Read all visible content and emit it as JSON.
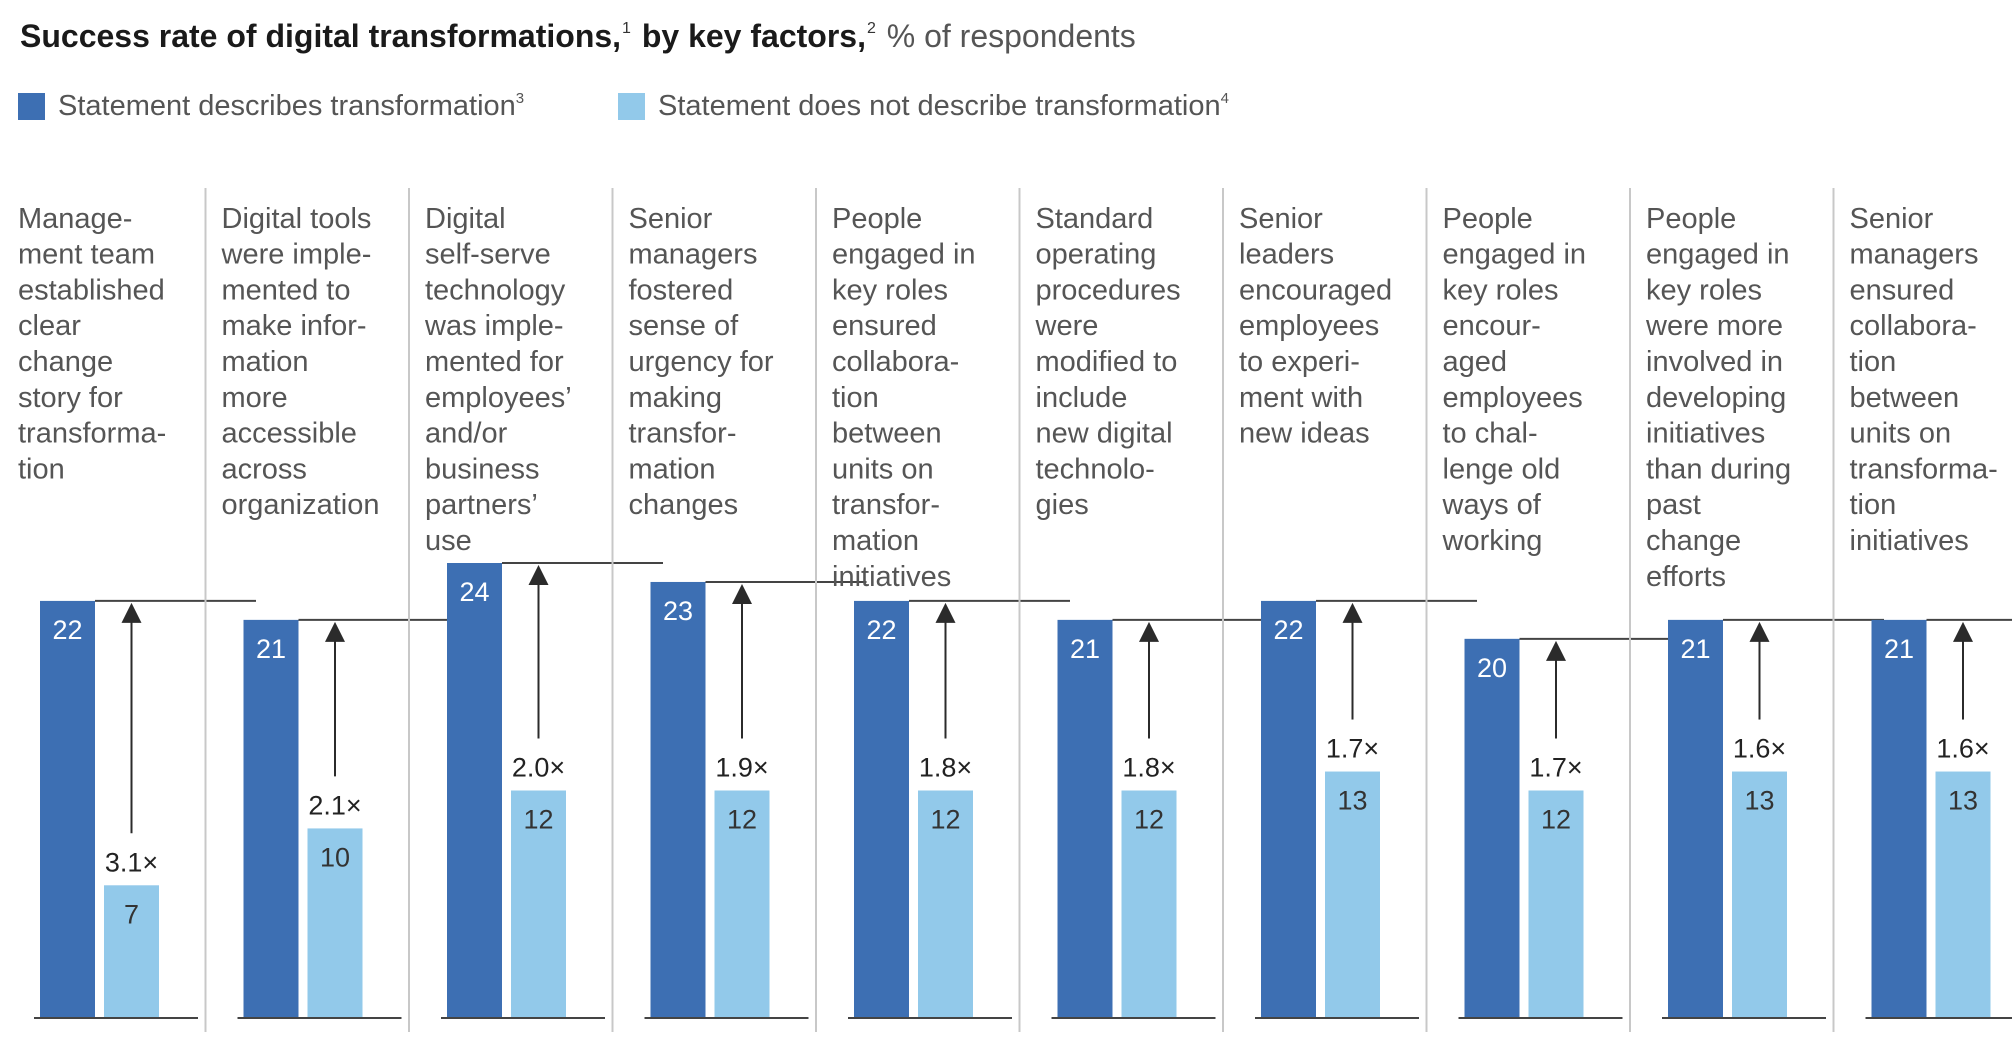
{
  "title": {
    "main_a": "Success rate of digital transformations,",
    "sup_a": "1",
    "main_b": " by key factors,",
    "sup_b": "2",
    "unit": "% of respondents"
  },
  "legend": [
    {
      "label": "Statement describes transformation",
      "sup": "3",
      "color": "#3d6fb3"
    },
    {
      "label": "Statement does not describe transformation",
      "sup": "4",
      "color": "#92c9ea"
    }
  ],
  "colors": {
    "describes": "#3d6fb3",
    "not_describes": "#92c9ea",
    "divider": "#c8c8c8",
    "axis": "#444444",
    "arrow": "#2b2b2b",
    "label_text": "#555555"
  },
  "chart_data": {
    "type": "bar",
    "categories": [
      [
        "Manage-",
        "ment team",
        "established",
        "clear",
        "change",
        "story for",
        "transforma-",
        "tion"
      ],
      [
        "Digital tools",
        "were imple-",
        "mented to",
        "make infor-",
        "mation",
        "more",
        "accessible",
        "across",
        "organization"
      ],
      [
        "Digital",
        "self-serve",
        "technology",
        "was imple-",
        "mented for",
        "employees’",
        "and/or",
        "business",
        "partners’",
        "use"
      ],
      [
        "Senior",
        "managers",
        "fostered",
        "sense of",
        "urgency for",
        "making",
        "transfor-",
        "mation",
        "changes"
      ],
      [
        "People",
        "engaged in",
        "key roles",
        "ensured",
        "collabora-",
        "tion",
        "between",
        "units on",
        "transfor-",
        "mation",
        "initiatives"
      ],
      [
        "Standard",
        "operating",
        "procedures",
        "were",
        "modified to",
        "include",
        "new digital",
        "technolo-",
        "gies"
      ],
      [
        "Senior",
        "leaders",
        "encouraged",
        "employees",
        "to experi-",
        "ment with",
        "new ideas"
      ],
      [
        "People",
        "engaged in",
        "key roles",
        "encour-",
        "aged",
        "employees",
        "to chal-",
        "lenge old",
        "ways of",
        "working"
      ],
      [
        "People",
        "engaged in",
        "key roles",
        "were more",
        "involved in",
        "developing",
        "initiatives",
        "than during",
        "past",
        "change",
        "efforts"
      ],
      [
        "Senior",
        "managers",
        "ensured",
        "collabora-",
        "tion",
        "between",
        "units on",
        "transforma-",
        "tion",
        "initiatives"
      ]
    ],
    "series": [
      {
        "name": "Statement describes transformation",
        "values": [
          22,
          21,
          24,
          23,
          22,
          21,
          22,
          20,
          21,
          21
        ]
      },
      {
        "name": "Statement does not describe transformation",
        "values": [
          7,
          10,
          12,
          12,
          12,
          12,
          13,
          12,
          13,
          13
        ]
      }
    ],
    "ratios": [
      "3.1×",
      "2.1×",
      "2.0×",
      "1.9×",
      "1.8×",
      "1.8×",
      "1.7×",
      "1.7×",
      "1.6×",
      "1.6×"
    ],
    "ylim": [
      0,
      24
    ],
    "grid": false,
    "legend_position": "top-left"
  }
}
